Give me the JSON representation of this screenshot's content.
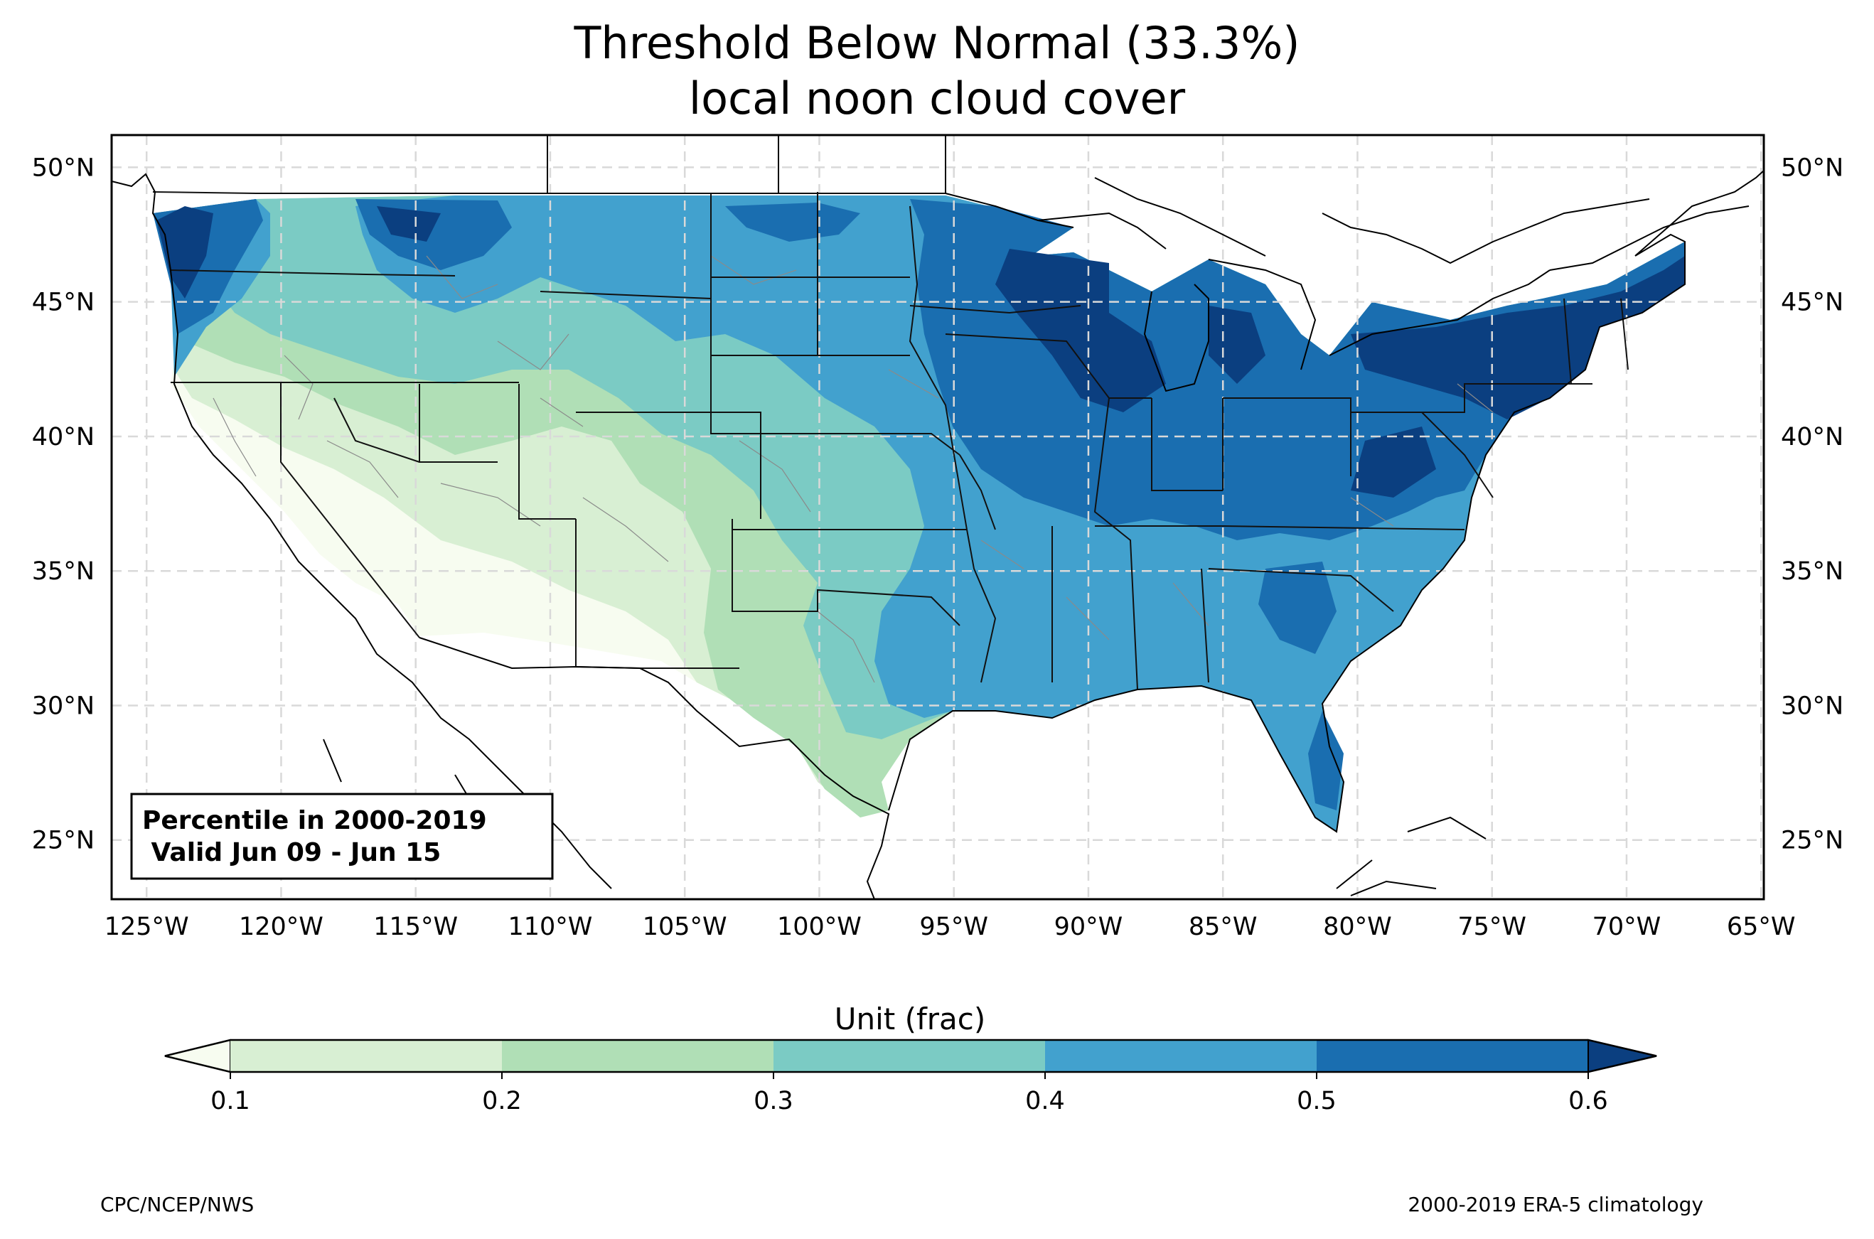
{
  "title": {
    "line1": "Threshold Below Normal (33.3%)",
    "line2": "local noon cloud cover"
  },
  "map": {
    "lon_range": [
      -126.3,
      -64.9
    ],
    "lat_range": [
      22.8,
      51.2
    ],
    "lon_ticks": [
      {
        "value": -125,
        "label": "125°W"
      },
      {
        "value": -120,
        "label": "120°W"
      },
      {
        "value": -115,
        "label": "115°W"
      },
      {
        "value": -110,
        "label": "110°W"
      },
      {
        "value": -105,
        "label": "105°W"
      },
      {
        "value": -100,
        "label": "100°W"
      },
      {
        "value": -95,
        "label": "95°W"
      },
      {
        "value": -90,
        "label": "90°W"
      },
      {
        "value": -85,
        "label": "85°W"
      },
      {
        "value": -80,
        "label": "80°W"
      },
      {
        "value": -75,
        "label": "75°W"
      },
      {
        "value": -70,
        "label": "70°W"
      },
      {
        "value": -65,
        "label": "65°W"
      }
    ],
    "lat_ticks": [
      {
        "value": 50,
        "label": "50°N"
      },
      {
        "value": 45,
        "label": "45°N"
      },
      {
        "value": 40,
        "label": "40°N"
      },
      {
        "value": 35,
        "label": "35°N"
      },
      {
        "value": 30,
        "label": "30°N"
      },
      {
        "value": 25,
        "label": "25°N"
      }
    ],
    "grid": true,
    "info_box": {
      "line1": "Percentile in 2000-2019",
      "line2": " Valid Jun 09 - Jun 15"
    }
  },
  "colorbar": {
    "label": "Unit (frac)",
    "ticks": [
      "0.1",
      "0.2",
      "0.3",
      "0.4",
      "0.5",
      "0.6"
    ],
    "levels": [
      0.1,
      0.2,
      0.3,
      0.4,
      0.5,
      0.6
    ],
    "colors": {
      "under": "#f7fcf0",
      "b1": "#d8efd3",
      "b2": "#b0dfb6",
      "b3": "#7bcbc4",
      "b4": "#42a1ce",
      "b5": "#1a6eb0",
      "over": "#0b3f80"
    },
    "extend": "both"
  },
  "credits": {
    "left": "CPC/NCEP/NWS",
    "right": "2000-2019 ERA-5 climatology"
  }
}
